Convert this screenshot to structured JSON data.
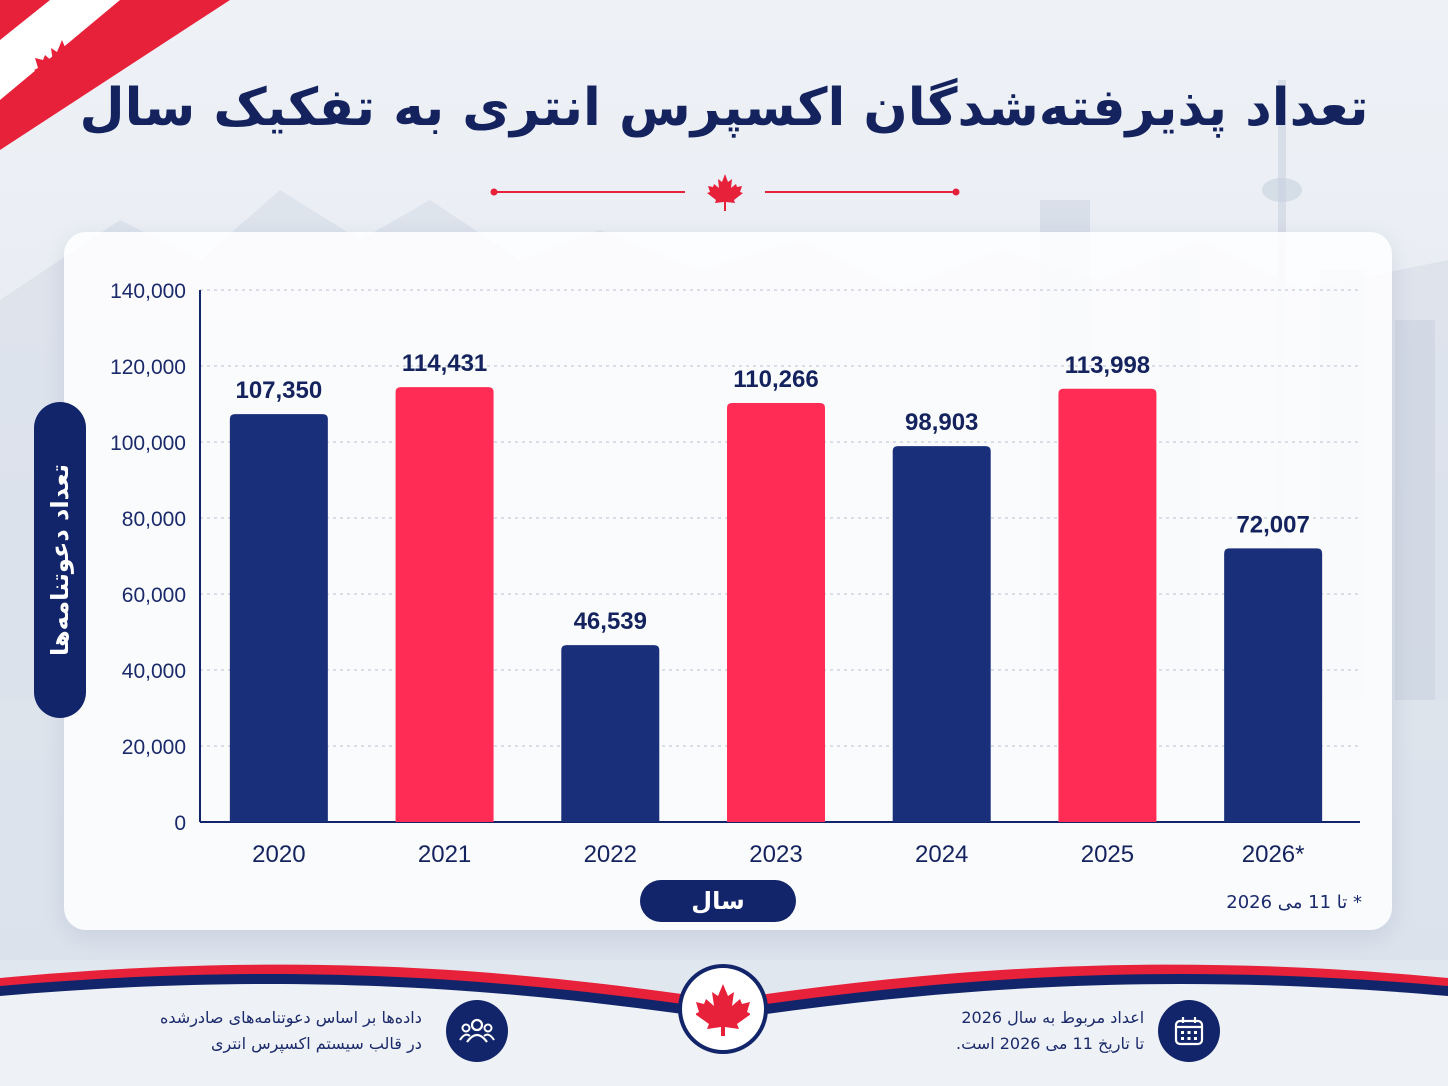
{
  "title": "تعداد پذیرفته‌شدگان اکسپرس انتری به تفکیک سال",
  "colors": {
    "navy": "#1a2f7a",
    "red": "#ff2d55",
    "dark": "#14235e"
  },
  "chart_data": {
    "type": "bar",
    "title": "تعداد پذیرفته‌شدگان اکسپرس انتری به تفکیک سال",
    "xlabel": "سال",
    "ylabel": "تعداد دعوتنامه‌ها",
    "categories": [
      "2020",
      "2021",
      "2022",
      "2023",
      "2024",
      "2025",
      "2026*"
    ],
    "values": [
      107350,
      114431,
      46539,
      110266,
      98903,
      113998,
      72007
    ],
    "value_labels": [
      "107,350",
      "114,431",
      "46,539",
      "110,266",
      "98,903",
      "113,998",
      "72,007"
    ],
    "bar_colors": [
      "#1a2f7a",
      "#ff2d55",
      "#1a2f7a",
      "#ff2d55",
      "#1a2f7a",
      "#ff2d55",
      "#1a2f7a"
    ],
    "ylim": [
      0,
      140000
    ],
    "yticks": [
      0,
      20000,
      40000,
      60000,
      80000,
      100000,
      120000,
      140000
    ],
    "ytick_labels": [
      "0",
      "20,000",
      "40,000",
      "60,000",
      "80,000",
      "100,000",
      "120,000",
      "140,000"
    ],
    "grid": true,
    "footnote": "* تا 11 می 2026"
  },
  "footer": {
    "left_line1": "داده‌ها بر اساس دعوتنامه‌های صادرشده",
    "left_line2": "در قالب سیستم اکسپرس انتری",
    "left_icon": "people-icon",
    "right_line1": "اعداد مربوط به سال 2026",
    "right_line2": "تا تاریخ 11 می 2026 است.",
    "right_icon": "calendar-icon",
    "center_icon": "maple-leaf-icon"
  }
}
